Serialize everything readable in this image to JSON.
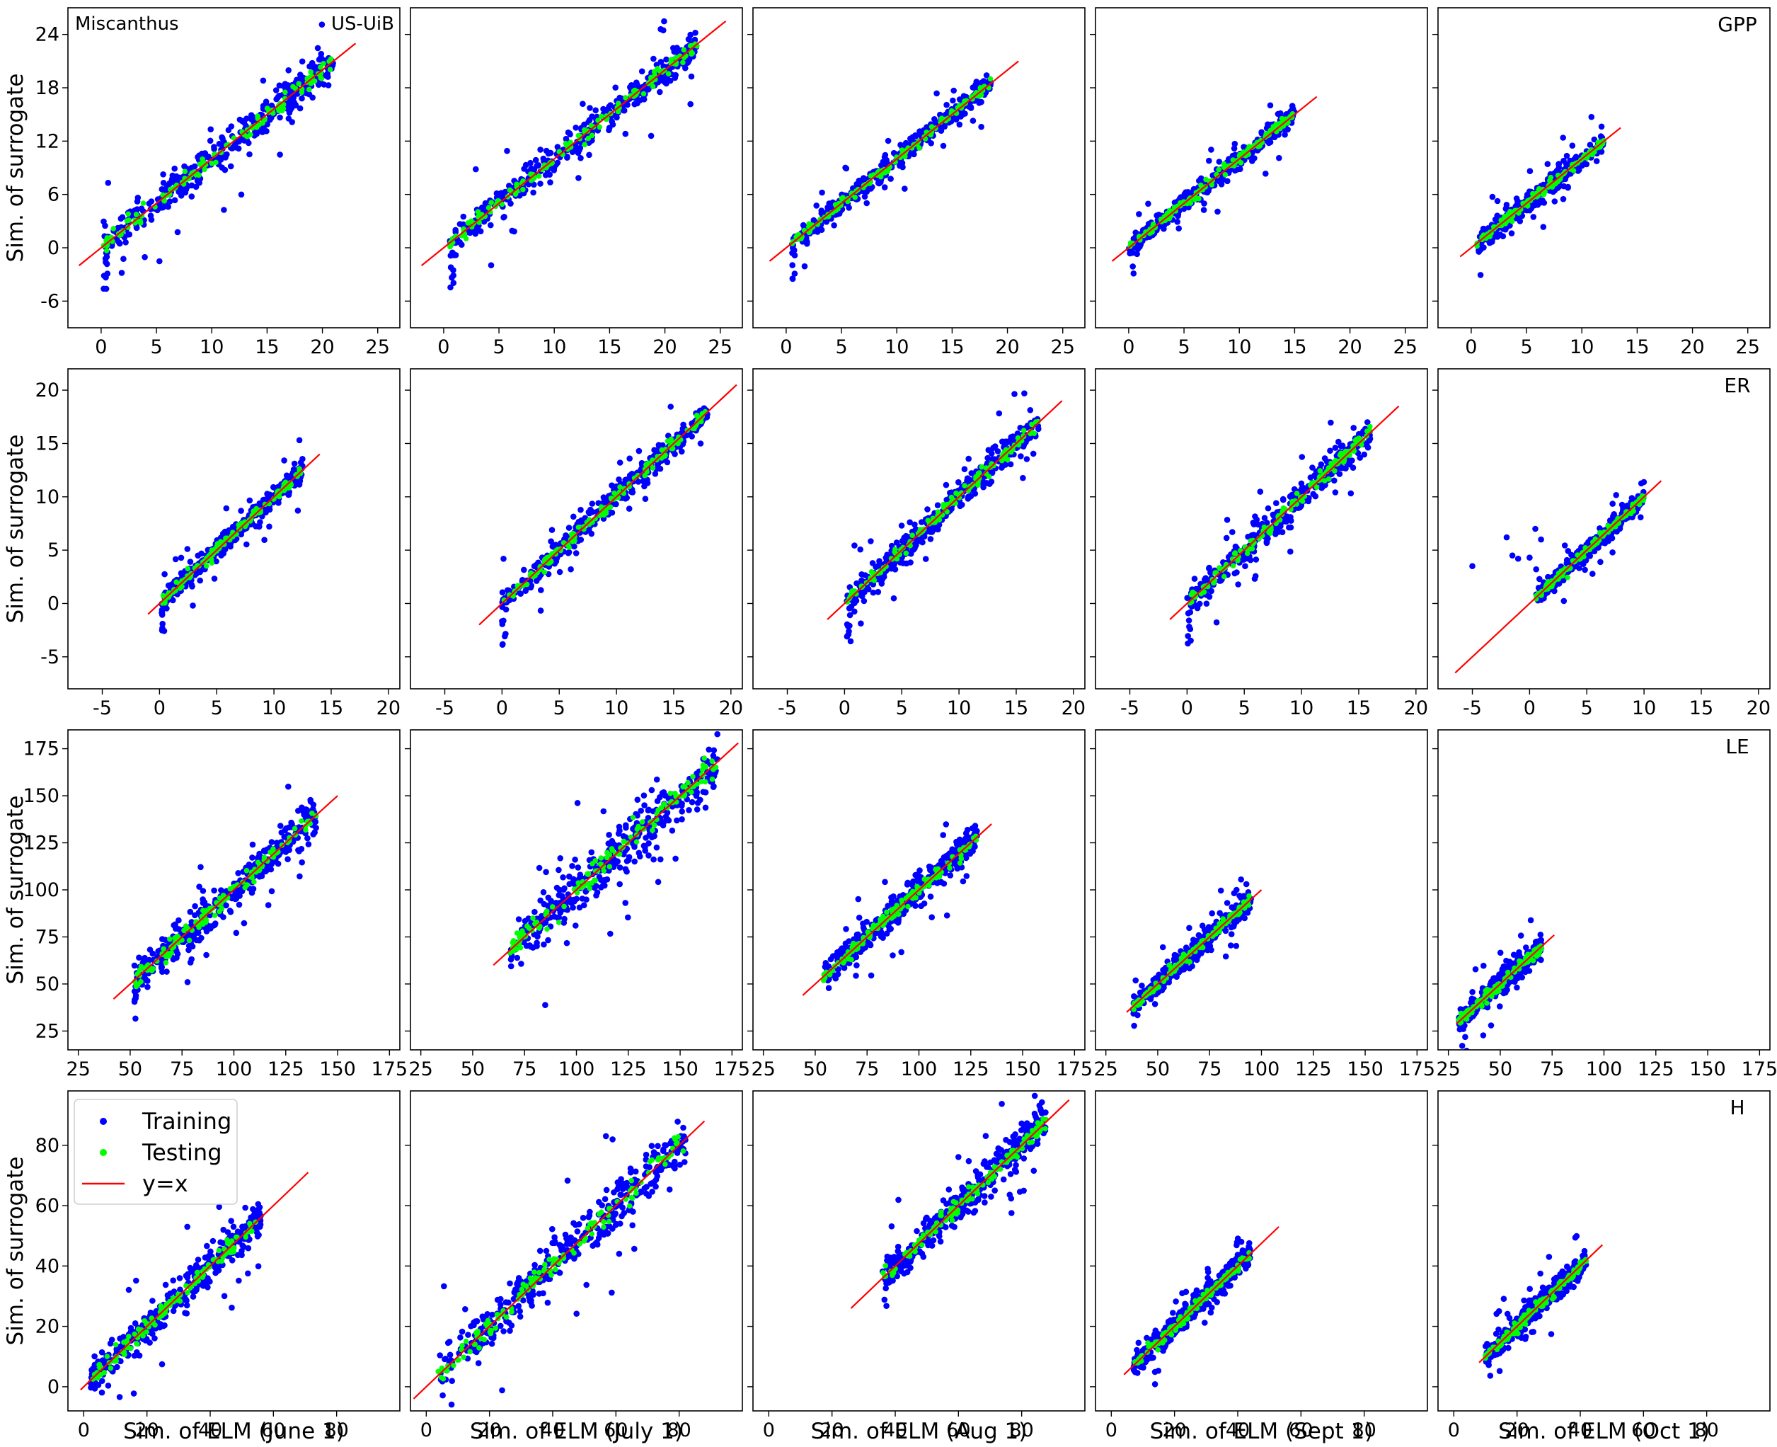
{
  "figure": {
    "site_label": "Miscanthus",
    "site_code": "US-UiB",
    "ylabel": "Sim. of surrogate",
    "colors": {
      "training": "#0000ff",
      "testing": "#00ff00",
      "identity": "#ff0000"
    },
    "legend": {
      "placement": "upper-left",
      "panel": "H, June 1",
      "entries": [
        {
          "label": "Training",
          "color": "#0000ff",
          "marker": "dot"
        },
        {
          "label": "Testing",
          "color": "#00ff00",
          "marker": "dot"
        },
        {
          "label": "y=x",
          "color": "#ff0000",
          "marker": "line"
        }
      ]
    },
    "dates": [
      "June 1",
      "July 1",
      "Aug 1",
      "Sept 1",
      "Oct 1"
    ],
    "xlabels": [
      "Sim. of ELM (June 1)",
      "Sim. of ELM (July 1)",
      "Sim. of ELM (Aug 1)",
      "Sim. of ELM (Sept 1)",
      "Sim. of ELM (Oct 1)"
    ]
  },
  "chart_data": [
    {
      "type": "scatter",
      "variable": "GPP",
      "xlim": [
        -3,
        27
      ],
      "ylim": [
        -9,
        27
      ],
      "xticks": [
        "0",
        "5",
        "10",
        "15",
        "20",
        "25"
      ],
      "yticks": [
        "-6",
        "0",
        "6",
        "12",
        "18",
        "24"
      ],
      "panels": [
        {
          "date": "June 1",
          "x_range": [
            0.2,
            21
          ],
          "identity": [
            -2,
            23
          ],
          "spread": 1.0,
          "low_tail": true
        },
        {
          "date": "July 1",
          "x_range": [
            0.5,
            23
          ],
          "identity": [
            -2,
            25.5
          ],
          "spread": 0.9,
          "low_tail": true
        },
        {
          "date": "Aug 1",
          "x_range": [
            0.5,
            18.5
          ],
          "identity": [
            -1.5,
            21
          ],
          "spread": 0.6,
          "low_tail": true
        },
        {
          "date": "Sept 1",
          "x_range": [
            0,
            15
          ],
          "identity": [
            -1.5,
            17
          ],
          "spread": 0.6,
          "low_tail": false
        },
        {
          "date": "Oct 1",
          "x_range": [
            0.5,
            12
          ],
          "identity": [
            -1,
            13.5
          ],
          "spread": 0.6,
          "low_tail": false
        }
      ]
    },
    {
      "type": "scatter",
      "variable": "ER",
      "xlim": [
        -8,
        21
      ],
      "ylim": [
        -8,
        22
      ],
      "xticks": [
        "-5",
        "0",
        "5",
        "10",
        "15",
        "20"
      ],
      "yticks": [
        "-5",
        "0",
        "5",
        "10",
        "15",
        "20"
      ],
      "panels": [
        {
          "date": "June 1",
          "x_range": [
            0.2,
            12.5
          ],
          "identity": [
            -1,
            14
          ],
          "spread": 0.5,
          "low_tail": true
        },
        {
          "date": "July 1",
          "x_range": [
            0,
            18
          ],
          "identity": [
            -2,
            20.5
          ],
          "spread": 0.6,
          "low_tail": true
        },
        {
          "date": "Aug 1",
          "x_range": [
            0.2,
            17
          ],
          "identity": [
            -1.5,
            19
          ],
          "spread": 0.7,
          "low_tail": true
        },
        {
          "date": "Sept 1",
          "x_range": [
            0,
            16
          ],
          "identity": [
            -1.5,
            18.5
          ],
          "spread": 0.7,
          "low_tail": true
        },
        {
          "date": "Oct 1",
          "x_range": [
            0.5,
            10
          ],
          "identity": [
            -6.5,
            11.5
          ],
          "spread": 0.4,
          "low_tail": false,
          "outliers": [
            [
              -5,
              3.5
            ],
            [
              -2,
              6.2
            ],
            [
              -1,
              4.2
            ],
            [
              0,
              4.3
            ],
            [
              0.5,
              7
            ],
            [
              1,
              6
            ],
            [
              -1.5,
              4.5
            ]
          ]
        }
      ]
    },
    {
      "type": "scatter",
      "variable": "LE",
      "xlim": [
        20,
        180
      ],
      "ylim": [
        15,
        185
      ],
      "xticks": [
        "25",
        "50",
        "75",
        "100",
        "125",
        "150",
        "175"
      ],
      "yticks": [
        "25",
        "50",
        "75",
        "100",
        "125",
        "150",
        "175"
      ],
      "panels": [
        {
          "date": "June 1",
          "x_range": [
            52,
            140
          ],
          "identity": [
            42,
            150
          ],
          "spread": 5,
          "low_tail": true
        },
        {
          "date": "July 1",
          "x_range": [
            68,
            168
          ],
          "identity": [
            60,
            178
          ],
          "spread": 7,
          "low_tail": false
        },
        {
          "date": "Aug 1",
          "x_range": [
            54,
            128
          ],
          "identity": [
            44,
            135
          ],
          "spread": 4,
          "low_tail": false
        },
        {
          "date": "Sept 1",
          "x_range": [
            38,
            95
          ],
          "identity": [
            35,
            100
          ],
          "spread": 3,
          "low_tail": false
        },
        {
          "date": "Oct 1",
          "x_range": [
            30,
            70
          ],
          "identity": [
            29,
            76
          ],
          "spread": 3,
          "low_tail": false
        }
      ]
    },
    {
      "type": "scatter",
      "variable": "H",
      "xlim": [
        -5,
        100
      ],
      "ylim": [
        -8,
        98
      ],
      "xticks": [
        "0",
        "20",
        "40",
        "60",
        "80"
      ],
      "yticks": [
        "0",
        "20",
        "40",
        "60",
        "80"
      ],
      "panels": [
        {
          "date": "June 1",
          "x_range": [
            2,
            56
          ],
          "identity": [
            -1,
            71
          ],
          "spread": 3,
          "low_tail": false
        },
        {
          "date": "July 1",
          "x_range": [
            3,
            82
          ],
          "identity": [
            -4,
            88
          ],
          "spread": 4,
          "low_tail": false
        },
        {
          "date": "Aug 1",
          "x_range": [
            36,
            88
          ],
          "identity": [
            26,
            95
          ],
          "spread": 3,
          "low_tail": false
        },
        {
          "date": "Sept 1",
          "x_range": [
            7,
            44
          ],
          "identity": [
            4,
            53
          ],
          "spread": 2,
          "low_tail": false
        },
        {
          "date": "Oct 1",
          "x_range": [
            10,
            42
          ],
          "identity": [
            8,
            47
          ],
          "spread": 2,
          "low_tail": false
        }
      ]
    }
  ]
}
